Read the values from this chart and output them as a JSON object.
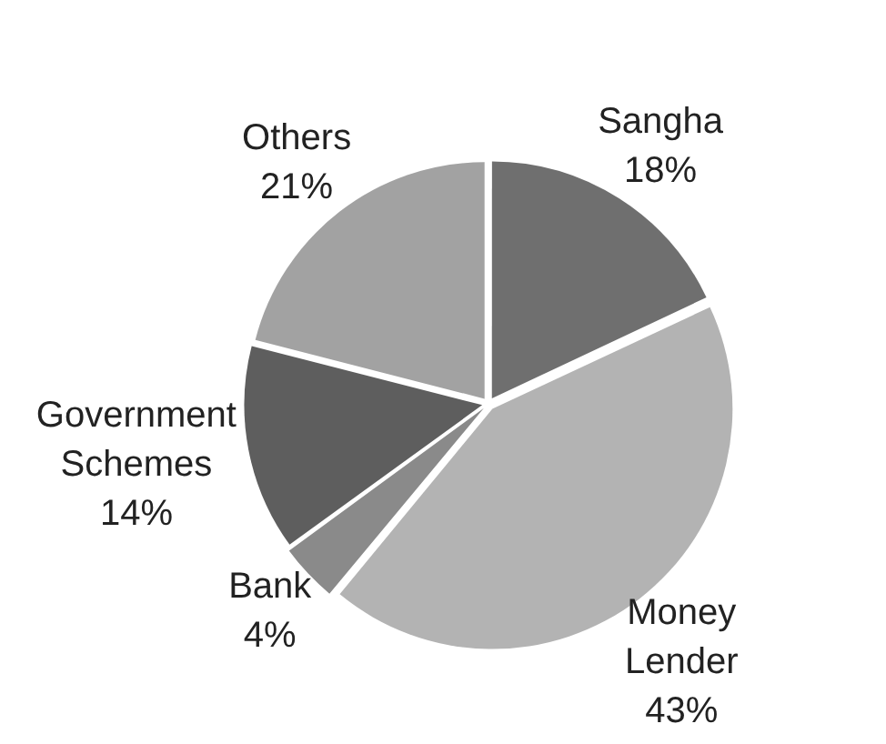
{
  "chart_data": {
    "type": "pie",
    "categories": [
      "Sangha",
      "Money Lender",
      "Bank",
      "Government Schemes",
      "Others"
    ],
    "values": [
      18,
      43,
      4,
      14,
      21
    ],
    "colors": [
      "#6f6f6f",
      "#b3b3b3",
      "#8a8a8a",
      "#5e5e5e",
      "#a2a2a2"
    ],
    "value_labels": [
      "18%",
      "43%",
      "4%",
      "14%",
      "21%"
    ],
    "legend": false
  }
}
